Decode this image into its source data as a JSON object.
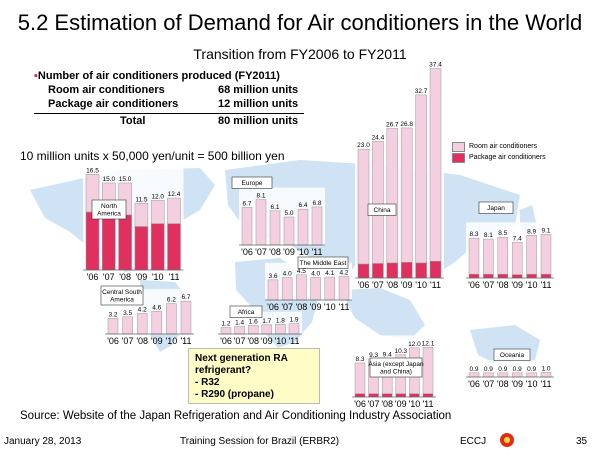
{
  "title": "5.2 Estimation of Demand for Air conditioners in the World",
  "subtitle": "Transition from FY2006 to FY2011",
  "production": {
    "heading": "Number of air conditioners produced (FY2011)",
    "rows": [
      {
        "label": "Room air conditioners",
        "value": "68 million units"
      },
      {
        "label": "Package air conditioners",
        "value": "12 million units"
      }
    ],
    "total_label": "Total",
    "total_value": "80 million units"
  },
  "calc_text": "10 million units x 50,000 yen/unit = 500 billion yen",
  "legend": {
    "room": "Room air conditioners",
    "package": "Package air conditioners"
  },
  "note": {
    "line1": "Next generation RA",
    "line2": "refrigerant?",
    "line3": "- R32",
    "line4": "- R290 (propane)"
  },
  "source": "Source: Website of the Japan Refrigeration and Air Conditioning Industry Association",
  "footer": {
    "date": "January 28, 2013",
    "session": "Training Session for Brazil (ERBR2)",
    "org": "ECCJ",
    "page": "35"
  },
  "colors": {
    "room": "#f4cfe0",
    "package": "#e03060",
    "map": "#cfe3f4"
  },
  "chart_data": [
    {
      "type": "bar",
      "region": "North America",
      "categories": [
        "'06",
        "'07",
        "'08",
        "'09",
        "'10",
        "'11"
      ],
      "series": [
        {
          "name": "Room air conditioners",
          "values": [
            6.5,
            5.5,
            5.5,
            4.0,
            4.0,
            4.4
          ]
        },
        {
          "name": "Package air conditioners",
          "values": [
            10.0,
            9.5,
            9.5,
            7.5,
            8.0,
            8.0
          ]
        }
      ],
      "totals": [
        "16.5",
        "15.0",
        "15.0",
        "11.5",
        "12.0",
        "12.4"
      ]
    },
    {
      "type": "bar",
      "region": "Europe",
      "categories": [
        "'06",
        "'07",
        "'08",
        "'09",
        "'10",
        "'11"
      ],
      "series": [
        {
          "name": "Room air conditioners",
          "values": [
            6.7,
            8.1,
            6.1,
            5.0,
            6.4,
            6.8
          ]
        },
        {
          "name": "Package air conditioners",
          "values": [
            0,
            0,
            0,
            0,
            0,
            0
          ]
        }
      ],
      "totals": [
        "6.7",
        "8.1",
        "6.1",
        "5.0",
        "6.4",
        "6.8"
      ]
    },
    {
      "type": "bar",
      "region": "China",
      "categories": [
        "'06",
        "'07",
        "'08",
        "'09",
        "'10",
        "'11"
      ],
      "series": [
        {
          "name": "Room air conditioners",
          "values": [
            20.5,
            21.8,
            24.0,
            24.0,
            30.0,
            34.4
          ]
        },
        {
          "name": "Package air conditioners",
          "values": [
            2.5,
            2.6,
            2.7,
            2.8,
            2.7,
            3.0
          ]
        }
      ],
      "totals": [
        "23.0",
        "24.4",
        "26.7",
        "26.8",
        "32.7",
        "37.4"
      ]
    },
    {
      "type": "bar",
      "region": "Japan",
      "categories": [
        "'06",
        "'07",
        "'08",
        "'09",
        "'10",
        "'11"
      ],
      "series": [
        {
          "name": "Room air conditioners",
          "values": [
            7.5,
            7.3,
            7.7,
            6.7,
            8.1,
            8.3
          ]
        },
        {
          "name": "Package air conditioners",
          "values": [
            0.8,
            0.8,
            0.8,
            0.7,
            0.8,
            0.8
          ]
        }
      ],
      "totals": [
        "8.3",
        "8.1",
        "8.5",
        "7.4",
        "8.9",
        "9.1"
      ]
    },
    {
      "type": "bar",
      "region": "Central South America",
      "categories": [
        "'06",
        "'07",
        "'08",
        "'09",
        "'10",
        "'11"
      ],
      "series": [
        {
          "name": "Room air conditioners",
          "values": [
            3.2,
            3.5,
            4.2,
            4.6,
            6.2,
            6.7
          ]
        },
        {
          "name": "Package air conditioners",
          "values": [
            0,
            0,
            0,
            0,
            0,
            0
          ]
        }
      ],
      "totals": [
        "3.2",
        "3.5",
        "4.2",
        "4.6",
        "6.2",
        "6.7"
      ]
    },
    {
      "type": "bar",
      "region": "The Middle East",
      "categories": [
        "'06",
        "'07",
        "'08",
        "'09",
        "'10",
        "'11"
      ],
      "series": [
        {
          "name": "Room air conditioners",
          "values": [
            3.6,
            4.0,
            4.5,
            4.0,
            4.1,
            4.2
          ]
        },
        {
          "name": "Package air conditioners",
          "values": [
            0,
            0,
            0,
            0,
            0,
            0
          ]
        }
      ],
      "totals": [
        "3.6",
        "4.0",
        "4.5",
        "4.0",
        "4.1",
        "4.2"
      ]
    },
    {
      "type": "bar",
      "region": "Africa",
      "categories": [
        "'06",
        "'07",
        "'08",
        "'09",
        "'10",
        "'11"
      ],
      "series": [
        {
          "name": "Room air conditioners",
          "values": [
            1.2,
            1.4,
            1.6,
            1.7,
            1.8,
            1.9
          ]
        },
        {
          "name": "Package air conditioners",
          "values": [
            0,
            0,
            0,
            0,
            0,
            0
          ]
        }
      ],
      "totals": [
        "1.2",
        "1.4",
        "1.6",
        "1.7",
        "1.8",
        "1.9"
      ]
    },
    {
      "type": "bar",
      "region": "Asia (except Japan and China)",
      "categories": [
        "'06",
        "'07",
        "'08",
        "'09",
        "'10",
        "'11"
      ],
      "series": [
        {
          "name": "Room air conditioners",
          "values": [
            7.5,
            8.5,
            8.6,
            9.5,
            11.2,
            11.3
          ]
        },
        {
          "name": "Package air conditioners",
          "values": [
            0.8,
            0.8,
            0.8,
            0.8,
            0.8,
            0.8
          ]
        }
      ],
      "totals": [
        "8.3",
        "9.3",
        "9.4",
        "10.3",
        "12.0",
        "12.1"
      ]
    },
    {
      "type": "bar",
      "region": "Oceania",
      "categories": [
        "'06",
        "'07",
        "'08",
        "'09",
        "'10",
        "'11"
      ],
      "series": [
        {
          "name": "Room air conditioners",
          "values": [
            0.9,
            0.9,
            0.9,
            0.9,
            0.9,
            1.0
          ]
        },
        {
          "name": "Package air conditioners",
          "values": [
            0,
            0,
            0,
            0,
            0,
            0
          ]
        }
      ],
      "totals": [
        "0.9",
        "0.9",
        "0.9",
        "0.9",
        "0.9",
        "1.0"
      ]
    }
  ]
}
